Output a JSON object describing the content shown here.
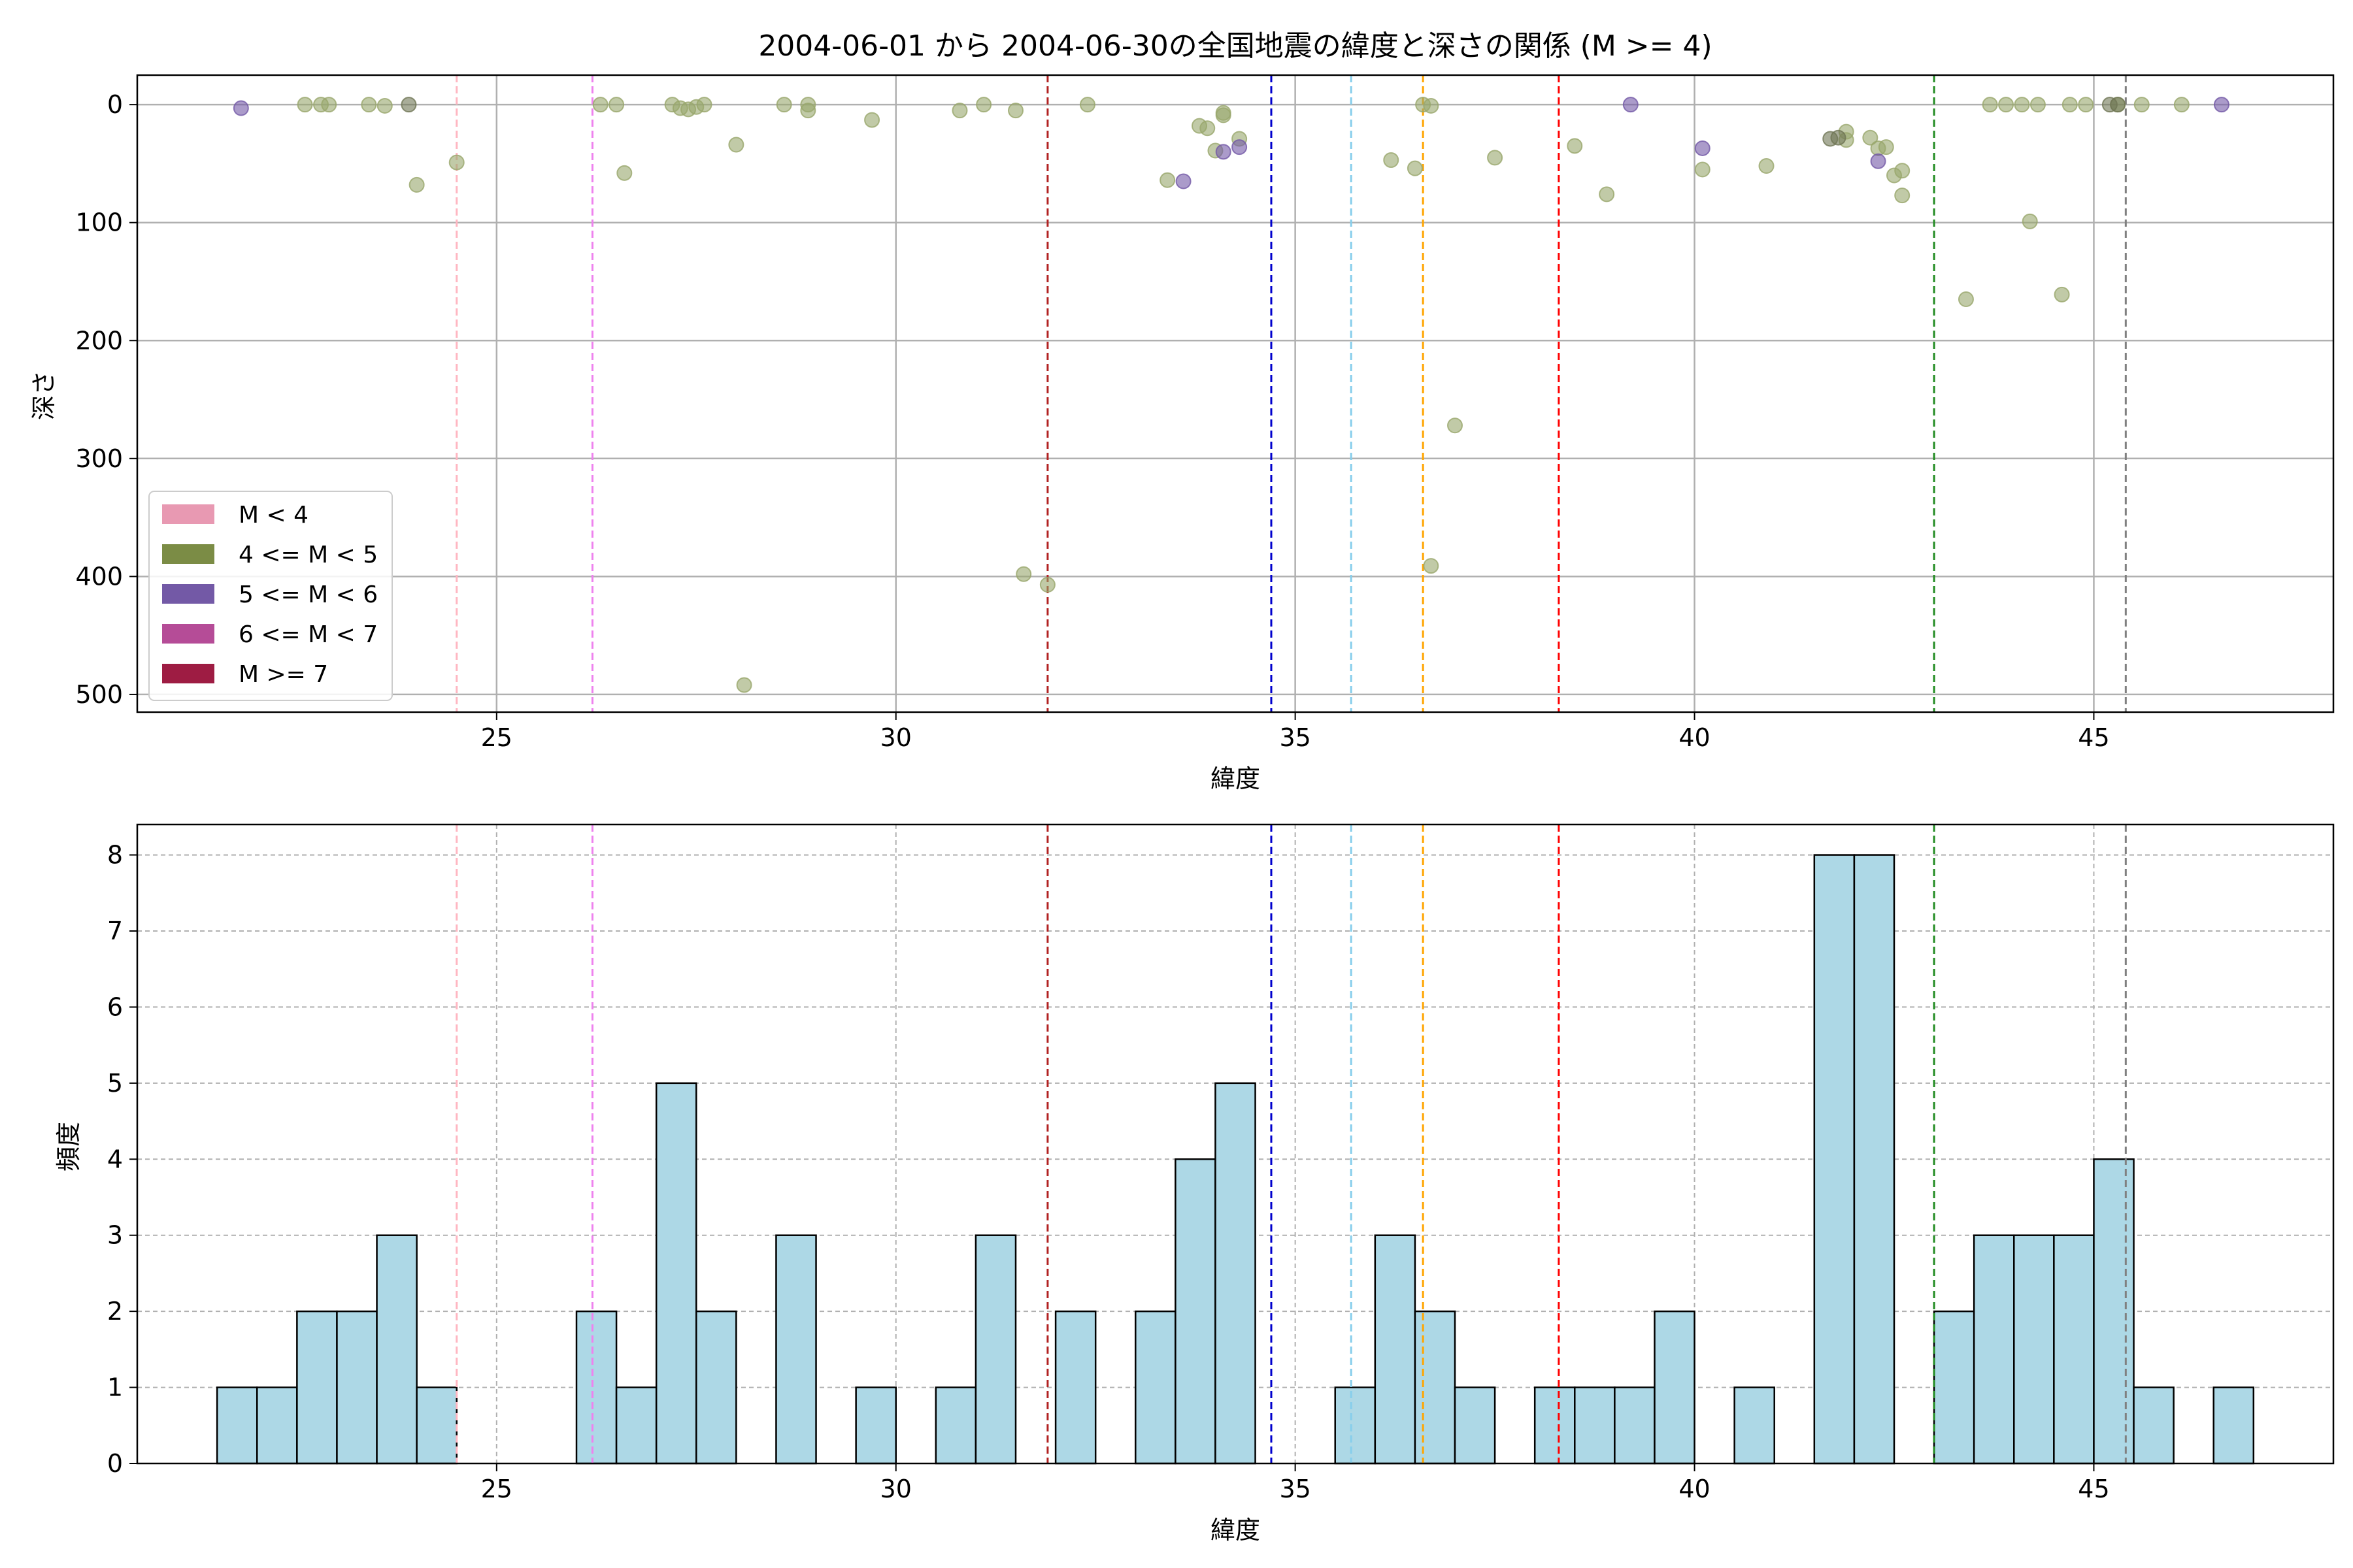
{
  "chart_data": [
    {
      "type": "scatter",
      "title": "2004-06-01 から 2004-06-30の全国地震の緯度と深さの関係 (M >= 4)",
      "xlabel": "緯度",
      "ylabel": "深さ",
      "xlim": [
        20.5,
        48.0
      ],
      "ylim": [
        515,
        -25
      ],
      "y_inverted": true,
      "xticks": [
        "25",
        "30",
        "35",
        "40",
        "45"
      ],
      "yticks": [
        "0",
        "100",
        "200",
        "300",
        "400",
        "500"
      ],
      "grid": true,
      "legend": {
        "placement": "lower-left",
        "items": [
          {
            "label": "M < 4",
            "color": "#e899b2"
          },
          {
            "label": "4 <= M < 5",
            "color": "#7b8c45"
          },
          {
            "label": "5 <= M < 6",
            "color": "#7359a6"
          },
          {
            "label": "6 <= M < 7",
            "color": "#b54c97"
          },
          {
            "label": "M >= 7",
            "color": "#9e1c43"
          }
        ]
      },
      "vlines": [
        {
          "x": 24.5,
          "color": "#ffb6c1"
        },
        {
          "x": 26.2,
          "color": "#ee82ee"
        },
        {
          "x": 31.9,
          "color": "#b22222"
        },
        {
          "x": 34.7,
          "color": "#0000cd"
        },
        {
          "x": 35.7,
          "color": "#87ceeb"
        },
        {
          "x": 36.6,
          "color": "#ffa500"
        },
        {
          "x": 38.3,
          "color": "#ff0000"
        },
        {
          "x": 43.0,
          "color": "#228b22"
        },
        {
          "x": 45.4,
          "color": "#808080"
        }
      ],
      "series": [
        {
          "class": "4 <= M < 5",
          "color": "#98a66c",
          "points": [
            [
              22.6,
              0
            ],
            [
              22.8,
              0
            ],
            [
              22.9,
              0
            ],
            [
              23.4,
              0
            ],
            [
              23.6,
              1
            ],
            [
              24.0,
              68
            ],
            [
              24.5,
              49
            ],
            [
              26.3,
              0
            ],
            [
              26.5,
              0
            ],
            [
              26.6,
              58
            ],
            [
              27.2,
              0
            ],
            [
              27.3,
              3
            ],
            [
              27.4,
              4
            ],
            [
              27.5,
              2
            ],
            [
              27.6,
              0
            ],
            [
              28.0,
              34
            ],
            [
              28.1,
              492
            ],
            [
              28.6,
              0
            ],
            [
              28.9,
              0
            ],
            [
              28.9,
              5
            ],
            [
              29.7,
              13
            ],
            [
              30.8,
              5
            ],
            [
              31.1,
              0
            ],
            [
              31.5,
              5
            ],
            [
              31.6,
              398
            ],
            [
              31.9,
              407
            ],
            [
              32.4,
              0
            ],
            [
              33.4,
              64
            ],
            [
              33.8,
              18
            ],
            [
              33.9,
              20
            ],
            [
              34.0,
              39
            ],
            [
              34.1,
              7
            ],
            [
              34.1,
              9
            ],
            [
              34.3,
              29
            ],
            [
              36.2,
              47
            ],
            [
              36.5,
              54
            ],
            [
              36.6,
              0
            ],
            [
              36.7,
              1
            ],
            [
              36.7,
              391
            ],
            [
              37.0,
              272
            ],
            [
              37.5,
              45
            ],
            [
              38.5,
              35
            ],
            [
              38.9,
              76
            ],
            [
              40.1,
              55
            ],
            [
              40.9,
              52
            ],
            [
              41.9,
              23
            ],
            [
              41.9,
              30
            ],
            [
              42.2,
              28
            ],
            [
              42.3,
              37
            ],
            [
              42.4,
              36
            ],
            [
              42.5,
              60
            ],
            [
              42.6,
              56
            ],
            [
              42.6,
              77
            ],
            [
              43.4,
              165
            ],
            [
              43.7,
              0
            ],
            [
              43.9,
              0
            ],
            [
              44.1,
              0
            ],
            [
              44.2,
              99
            ],
            [
              44.3,
              0
            ],
            [
              44.6,
              161
            ],
            [
              44.7,
              0
            ],
            [
              44.9,
              0
            ],
            [
              45.3,
              0
            ],
            [
              45.6,
              0
            ],
            [
              46.1,
              0
            ]
          ]
        },
        {
          "class": "4 <= M < 5 (overlapping, darker)",
          "color": "#6f7655",
          "points": [
            [
              23.9,
              0
            ],
            [
              41.7,
              29
            ],
            [
              41.8,
              28
            ],
            [
              45.2,
              0
            ],
            [
              45.3,
              0
            ]
          ]
        },
        {
          "class": "5 <= M < 6",
          "color": "#7359a6",
          "points": [
            [
              21.8,
              3
            ],
            [
              33.6,
              65
            ],
            [
              34.1,
              40
            ],
            [
              34.3,
              36
            ],
            [
              39.2,
              0
            ],
            [
              40.1,
              37
            ],
            [
              42.3,
              48
            ],
            [
              46.6,
              0
            ]
          ]
        }
      ]
    },
    {
      "type": "bar",
      "title": "",
      "xlabel": "緯度",
      "ylabel": "頻度",
      "xlim": [
        20.5,
        48.0
      ],
      "ylim": [
        0,
        8.4
      ],
      "xticks": [
        "25",
        "30",
        "35",
        "40",
        "45"
      ],
      "yticks": [
        "0",
        "1",
        "2",
        "3",
        "4",
        "5",
        "6",
        "7",
        "8"
      ],
      "grid": true,
      "bar_color": "#add8e6",
      "bin_width": 0.5,
      "bins": [
        {
          "x": 21.75,
          "count": 1
        },
        {
          "x": 22.25,
          "count": 1
        },
        {
          "x": 22.75,
          "count": 2
        },
        {
          "x": 23.25,
          "count": 2
        },
        {
          "x": 23.75,
          "count": 3
        },
        {
          "x": 24.25,
          "count": 1
        },
        {
          "x": 26.25,
          "count": 2
        },
        {
          "x": 26.75,
          "count": 1
        },
        {
          "x": 27.25,
          "count": 5
        },
        {
          "x": 27.75,
          "count": 2
        },
        {
          "x": 28.75,
          "count": 3
        },
        {
          "x": 29.75,
          "count": 1
        },
        {
          "x": 30.75,
          "count": 1
        },
        {
          "x": 31.25,
          "count": 3
        },
        {
          "x": 32.25,
          "count": 2
        },
        {
          "x": 33.25,
          "count": 2
        },
        {
          "x": 33.75,
          "count": 4
        },
        {
          "x": 34.25,
          "count": 5
        },
        {
          "x": 35.75,
          "count": 1
        },
        {
          "x": 36.25,
          "count": 3
        },
        {
          "x": 36.75,
          "count": 2
        },
        {
          "x": 37.25,
          "count": 1
        },
        {
          "x": 38.25,
          "count": 1
        },
        {
          "x": 38.75,
          "count": 1
        },
        {
          "x": 39.25,
          "count": 1
        },
        {
          "x": 39.75,
          "count": 2
        },
        {
          "x": 40.75,
          "count": 1
        },
        {
          "x": 41.75,
          "count": 8
        },
        {
          "x": 42.25,
          "count": 8
        },
        {
          "x": 43.25,
          "count": 2
        },
        {
          "x": 43.75,
          "count": 3
        },
        {
          "x": 44.25,
          "count": 3
        },
        {
          "x": 44.75,
          "count": 3
        },
        {
          "x": 45.25,
          "count": 4
        },
        {
          "x": 45.75,
          "count": 1
        },
        {
          "x": 46.75,
          "count": 1
        }
      ],
      "vlines": [
        {
          "x": 24.5,
          "color": "#ffb6c1"
        },
        {
          "x": 26.2,
          "color": "#ee82ee"
        },
        {
          "x": 31.9,
          "color": "#b22222"
        },
        {
          "x": 34.7,
          "color": "#0000cd"
        },
        {
          "x": 35.7,
          "color": "#87ceeb"
        },
        {
          "x": 36.6,
          "color": "#ffa500"
        },
        {
          "x": 38.3,
          "color": "#ff0000"
        },
        {
          "x": 43.0,
          "color": "#228b22"
        },
        {
          "x": 45.4,
          "color": "#808080"
        }
      ]
    }
  ]
}
